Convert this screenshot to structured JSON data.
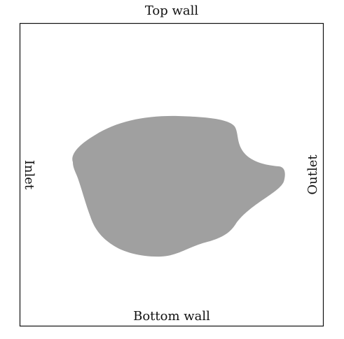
{
  "labels": {
    "top": "Top wall",
    "bottom": "Bottom wall",
    "left": "Inlet",
    "right": "Outlet"
  },
  "colors": {
    "boundary": "#111111",
    "obstacle": "#a0a0a0",
    "background": "#ffffff"
  }
}
